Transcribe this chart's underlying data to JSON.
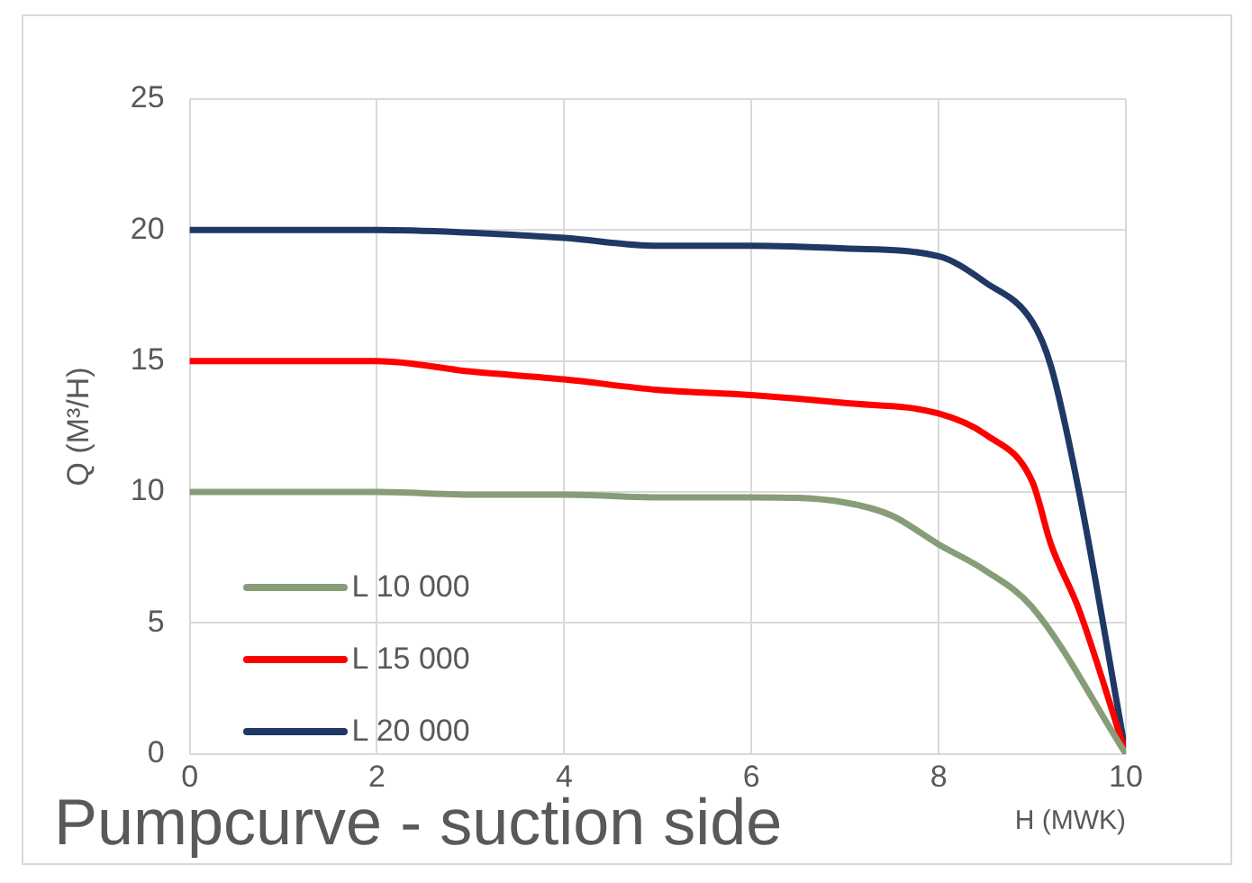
{
  "chart_data": {
    "type": "line",
    "title": "Pumpcurve - suction side",
    "xlabel": "H (MWK)",
    "ylabel": "Q (M³/H)",
    "xlim": [
      0,
      10
    ],
    "xticks": [
      0,
      2,
      4,
      6,
      8,
      10
    ],
    "ylim": [
      0,
      25
    ],
    "yticks": [
      0,
      5,
      10,
      15,
      20,
      25
    ],
    "grid": true,
    "legend": "bottom left",
    "marker": "none",
    "line_style": "solid",
    "series": [
      {
        "name": "L 10 000",
        "color": "#879d77",
        "x": [
          0,
          2,
          3,
          4,
          5,
          6,
          7,
          7.5,
          8,
          8.5,
          9,
          10
        ],
        "values": [
          10,
          10,
          9.9,
          9.9,
          9.8,
          9.8,
          9.6,
          9.1,
          8,
          7,
          5.6,
          0
        ]
      },
      {
        "name": "L 15 000",
        "color": "#ff0000",
        "x": [
          0,
          1,
          2,
          3,
          4,
          5,
          6,
          7,
          8,
          8.5,
          9,
          9.2,
          9.5,
          10
        ],
        "values": [
          15,
          15,
          15,
          14.6,
          14.3,
          13.9,
          13.7,
          13.4,
          13,
          12.2,
          10.4,
          8,
          5.5,
          0
        ]
      },
      {
        "name": "L 20 000",
        "color": "#1f3864",
        "x": [
          0,
          2,
          3,
          4,
          5,
          6,
          7,
          8,
          8.5,
          9,
          9.2,
          9.5,
          10
        ],
        "values": [
          20,
          20,
          19.9,
          19.7,
          19.4,
          19.4,
          19.3,
          19,
          18,
          16.5,
          14.8,
          10,
          0
        ]
      }
    ]
  }
}
